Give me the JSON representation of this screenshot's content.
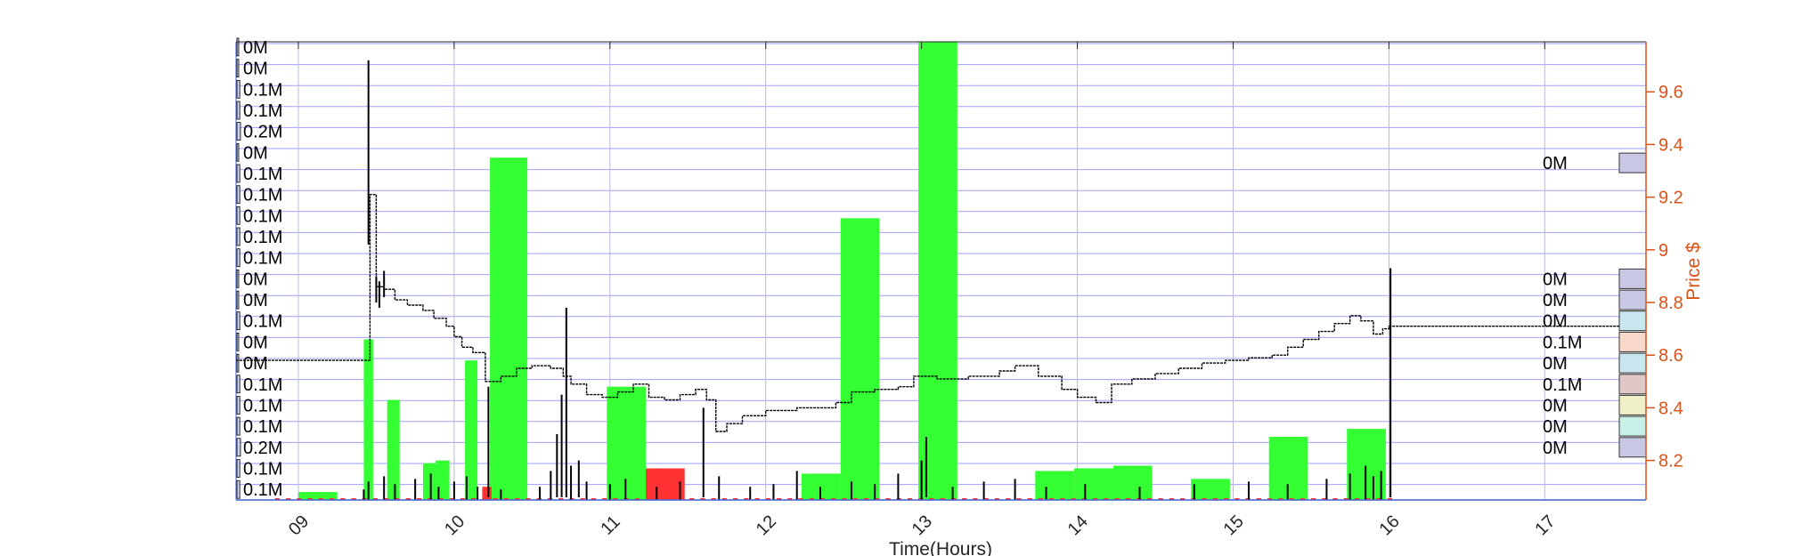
{
  "chart_data": {
    "type": "bar",
    "xlabel": "Time(Hours)",
    "ylabel_right": "Price $",
    "x_ticks": [
      "09",
      "10",
      "11",
      "12",
      "13",
      "14",
      "15",
      "16",
      "17"
    ],
    "xlim_hours": [
      8.6,
      17.65
    ],
    "price_ylim": [
      8.05,
      9.79
    ],
    "price_ticks": [
      8.2,
      8.4,
      8.6,
      8.8,
      9,
      9.2,
      9.4,
      9.6
    ],
    "price_tick_labels": [
      "8.2",
      "8.4",
      "8.6",
      "8.8",
      "9",
      "9.2",
      "9.4",
      "9.6"
    ],
    "grid": true,
    "colors": {
      "buy_volume": "#33ff33",
      "sell_volume": "#ff3333",
      "price_axis": "#d95319",
      "grid": "#8080ff",
      "price_line": "#000000",
      "trade_bars": "#000000",
      "profile_box_lavender": "#c8c8e6",
      "profile_box_lightblue": "#c8e6f0",
      "profile_box_peach": "#f8d8c8",
      "profile_box_rose": "#e0c8c8",
      "profile_box_lightyellow": "#f0f0c8",
      "profile_box_mint": "#c8f0e6"
    },
    "volume_profile_left": [
      "0M",
      "0M",
      "0.1M",
      "0.1M",
      "0.2M",
      "0M",
      "0.1M",
      "0.1M",
      "0.1M",
      "0.1M",
      "0.1M",
      "0M",
      "0M",
      "0.1M",
      "0M",
      "0M",
      "0.1M",
      "0.1M",
      "0.1M",
      "0.2M",
      "0.1M",
      "0.1M"
    ],
    "volume_profile_right": [
      {
        "price": 9.33,
        "label": "0M",
        "color": "lavender"
      },
      {
        "price": 8.89,
        "label": "0M",
        "color": "lavender"
      },
      {
        "price": 8.81,
        "label": "0M",
        "color": "lavender"
      },
      {
        "price": 8.73,
        "label": "0M",
        "color": "lightblue"
      },
      {
        "price": 8.65,
        "label": "0.1M",
        "color": "peach"
      },
      {
        "price": 8.57,
        "label": "0M",
        "color": "lightblue"
      },
      {
        "price": 8.49,
        "label": "0.1M",
        "color": "rose"
      },
      {
        "price": 8.41,
        "label": "0M",
        "color": "lightyellow"
      },
      {
        "price": 8.33,
        "label": "0M",
        "color": "mint"
      },
      {
        "price": 8.25,
        "label": "0M",
        "color": "lavender"
      }
    ],
    "buy_volume_bars": [
      {
        "x0": 9.0,
        "x1": 9.25,
        "top_price": 8.08
      },
      {
        "x0": 9.42,
        "x1": 9.48,
        "top_price": 8.66
      },
      {
        "x0": 9.57,
        "x1": 9.65,
        "top_price": 8.43
      },
      {
        "x0": 9.8,
        "x1": 9.9,
        "top_price": 8.19
      },
      {
        "x0": 9.88,
        "x1": 9.97,
        "top_price": 8.2
      },
      {
        "x0": 10.07,
        "x1": 10.15,
        "top_price": 8.58
      },
      {
        "x0": 10.23,
        "x1": 10.47,
        "top_price": 9.35
      },
      {
        "x0": 10.98,
        "x1": 11.23,
        "top_price": 8.48
      },
      {
        "x0": 12.23,
        "x1": 12.48,
        "top_price": 8.15
      },
      {
        "x0": 12.48,
        "x1": 12.73,
        "top_price": 9.12
      },
      {
        "x0": 12.98,
        "x1": 13.23,
        "top_price": 9.79
      },
      {
        "x0": 13.73,
        "x1": 13.98,
        "top_price": 8.16
      },
      {
        "x0": 13.98,
        "x1": 14.23,
        "top_price": 8.17
      },
      {
        "x0": 14.23,
        "x1": 14.48,
        "top_price": 8.18
      },
      {
        "x0": 14.73,
        "x1": 14.98,
        "top_price": 8.13
      },
      {
        "x0": 15.23,
        "x1": 15.48,
        "top_price": 8.29
      },
      {
        "x0": 15.73,
        "x1": 15.98,
        "top_price": 8.32
      }
    ],
    "sell_volume_bars": [
      {
        "x0": 10.18,
        "x1": 10.24,
        "top_price": 8.1
      },
      {
        "x0": 11.23,
        "x1": 11.48,
        "top_price": 8.17
      }
    ],
    "price_series": [
      {
        "t": 8.6,
        "p": 8.58
      },
      {
        "t": 9.45,
        "p": 8.58
      },
      {
        "t": 9.46,
        "p": 9.21
      },
      {
        "t": 9.5,
        "p": 8.86
      },
      {
        "t": 9.55,
        "p": 8.85
      },
      {
        "t": 9.62,
        "p": 8.81
      },
      {
        "t": 9.7,
        "p": 8.79
      },
      {
        "t": 9.8,
        "p": 8.77
      },
      {
        "t": 9.87,
        "p": 8.74
      },
      {
        "t": 9.95,
        "p": 8.71
      },
      {
        "t": 10.0,
        "p": 8.67
      },
      {
        "t": 10.05,
        "p": 8.63
      },
      {
        "t": 10.12,
        "p": 8.61
      },
      {
        "t": 10.2,
        "p": 8.5
      },
      {
        "t": 10.3,
        "p": 8.52
      },
      {
        "t": 10.4,
        "p": 8.55
      },
      {
        "t": 10.5,
        "p": 8.56
      },
      {
        "t": 10.62,
        "p": 8.55
      },
      {
        "t": 10.7,
        "p": 8.52
      },
      {
        "t": 10.75,
        "p": 8.49
      },
      {
        "t": 10.85,
        "p": 8.45
      },
      {
        "t": 10.95,
        "p": 8.44
      },
      {
        "t": 11.05,
        "p": 8.46
      },
      {
        "t": 11.15,
        "p": 8.49
      },
      {
        "t": 11.25,
        "p": 8.44
      },
      {
        "t": 11.35,
        "p": 8.43
      },
      {
        "t": 11.45,
        "p": 8.45
      },
      {
        "t": 11.55,
        "p": 8.47
      },
      {
        "t": 11.62,
        "p": 8.43
      },
      {
        "t": 11.68,
        "p": 8.31
      },
      {
        "t": 11.75,
        "p": 8.34
      },
      {
        "t": 11.85,
        "p": 8.37
      },
      {
        "t": 12.0,
        "p": 8.39
      },
      {
        "t": 12.2,
        "p": 8.4
      },
      {
        "t": 12.45,
        "p": 8.42
      },
      {
        "t": 12.55,
        "p": 8.46
      },
      {
        "t": 12.7,
        "p": 8.47
      },
      {
        "t": 12.85,
        "p": 8.48
      },
      {
        "t": 12.95,
        "p": 8.52
      },
      {
        "t": 13.1,
        "p": 8.51
      },
      {
        "t": 13.3,
        "p": 8.52
      },
      {
        "t": 13.5,
        "p": 8.54
      },
      {
        "t": 13.6,
        "p": 8.56
      },
      {
        "t": 13.75,
        "p": 8.52
      },
      {
        "t": 13.9,
        "p": 8.47
      },
      {
        "t": 14.0,
        "p": 8.44
      },
      {
        "t": 14.12,
        "p": 8.42
      },
      {
        "t": 14.22,
        "p": 8.49
      },
      {
        "t": 14.35,
        "p": 8.51
      },
      {
        "t": 14.5,
        "p": 8.53
      },
      {
        "t": 14.65,
        "p": 8.55
      },
      {
        "t": 14.8,
        "p": 8.57
      },
      {
        "t": 14.95,
        "p": 8.58
      },
      {
        "t": 15.1,
        "p": 8.59
      },
      {
        "t": 15.25,
        "p": 8.6
      },
      {
        "t": 15.35,
        "p": 8.63
      },
      {
        "t": 15.45,
        "p": 8.66
      },
      {
        "t": 15.55,
        "p": 8.69
      },
      {
        "t": 15.65,
        "p": 8.72
      },
      {
        "t": 15.75,
        "p": 8.75
      },
      {
        "t": 15.82,
        "p": 8.73
      },
      {
        "t": 15.9,
        "p": 8.68
      },
      {
        "t": 15.96,
        "p": 8.7
      },
      {
        "t": 16.0,
        "p": 8.71
      },
      {
        "t": 17.65,
        "p": 8.71
      }
    ],
    "trade_spikes": [
      {
        "t": 9.45,
        "low": 9.02,
        "high": 9.72
      },
      {
        "t": 9.5,
        "low": 8.8,
        "high": 8.9
      },
      {
        "t": 9.52,
        "low": 8.78,
        "high": 8.88
      },
      {
        "t": 9.55,
        "low": 8.82,
        "high": 8.92
      },
      {
        "t": 10.22,
        "low": 8.06,
        "high": 8.48
      },
      {
        "t": 10.66,
        "low": 8.06,
        "high": 8.3
      },
      {
        "t": 10.69,
        "low": 8.06,
        "high": 8.45
      },
      {
        "t": 10.72,
        "low": 8.06,
        "high": 8.78
      },
      {
        "t": 10.8,
        "low": 8.06,
        "high": 8.2
      },
      {
        "t": 11.6,
        "low": 8.06,
        "high": 8.4
      },
      {
        "t": 13.03,
        "low": 8.06,
        "high": 8.29
      },
      {
        "t": 16.01,
        "low": 8.06,
        "high": 8.93
      }
    ],
    "small_trade_bars": [
      {
        "t": 9.42,
        "v": 8.09
      },
      {
        "t": 9.45,
        "v": 8.12
      },
      {
        "t": 9.55,
        "v": 8.14
      },
      {
        "t": 9.62,
        "v": 8.11
      },
      {
        "t": 9.75,
        "v": 8.13
      },
      {
        "t": 9.85,
        "v": 8.15
      },
      {
        "t": 9.9,
        "v": 8.1
      },
      {
        "t": 10.0,
        "v": 8.12
      },
      {
        "t": 10.08,
        "v": 8.14
      },
      {
        "t": 10.15,
        "v": 8.1
      },
      {
        "t": 10.3,
        "v": 8.09
      },
      {
        "t": 10.55,
        "v": 8.1
      },
      {
        "t": 10.62,
        "v": 8.16
      },
      {
        "t": 10.75,
        "v": 8.18
      },
      {
        "t": 10.85,
        "v": 8.12
      },
      {
        "t": 11.0,
        "v": 8.11
      },
      {
        "t": 11.1,
        "v": 8.13
      },
      {
        "t": 11.3,
        "v": 8.1
      },
      {
        "t": 11.45,
        "v": 8.12
      },
      {
        "t": 11.7,
        "v": 8.14
      },
      {
        "t": 11.9,
        "v": 8.1
      },
      {
        "t": 12.05,
        "v": 8.11
      },
      {
        "t": 12.2,
        "v": 8.16
      },
      {
        "t": 12.35,
        "v": 8.1
      },
      {
        "t": 12.55,
        "v": 8.12
      },
      {
        "t": 12.7,
        "v": 8.11
      },
      {
        "t": 12.85,
        "v": 8.15
      },
      {
        "t": 13.0,
        "v": 8.2
      },
      {
        "t": 13.2,
        "v": 8.1
      },
      {
        "t": 13.4,
        "v": 8.12
      },
      {
        "t": 13.6,
        "v": 8.13
      },
      {
        "t": 13.8,
        "v": 8.1
      },
      {
        "t": 14.05,
        "v": 8.11
      },
      {
        "t": 14.4,
        "v": 8.1
      },
      {
        "t": 14.75,
        "v": 8.11
      },
      {
        "t": 15.1,
        "v": 8.12
      },
      {
        "t": 15.35,
        "v": 8.11
      },
      {
        "t": 15.6,
        "v": 8.13
      },
      {
        "t": 15.75,
        "v": 8.15
      },
      {
        "t": 15.85,
        "v": 8.18
      },
      {
        "t": 15.9,
        "v": 8.14
      },
      {
        "t": 15.95,
        "v": 8.16
      }
    ],
    "left_profile_bars": [
      {
        "price": 9.77,
        "fraction": 0.0
      },
      {
        "price": 9.69,
        "fraction": 0.0
      },
      {
        "price": 9.61,
        "fraction": 0.3
      },
      {
        "price": 9.53,
        "fraction": 0.3
      },
      {
        "price": 9.45,
        "fraction": 0.5
      },
      {
        "price": 9.37,
        "fraction": 0.0
      },
      {
        "price": 9.29,
        "fraction": 0.3
      },
      {
        "price": 9.21,
        "fraction": 0.3
      },
      {
        "price": 9.13,
        "fraction": 0.3
      },
      {
        "price": 9.05,
        "fraction": 0.3
      },
      {
        "price": 8.97,
        "fraction": 0.3
      },
      {
        "price": 8.89,
        "fraction": 0.0
      },
      {
        "price": 8.81,
        "fraction": 0.0
      },
      {
        "price": 8.73,
        "fraction": 0.3
      },
      {
        "price": 8.65,
        "fraction": 0.0
      },
      {
        "price": 8.57,
        "fraction": 0.0
      },
      {
        "price": 8.49,
        "fraction": 0.3
      },
      {
        "price": 8.41,
        "fraction": 0.3
      },
      {
        "price": 8.33,
        "fraction": 0.3
      },
      {
        "price": 8.25,
        "fraction": 0.5
      },
      {
        "price": 8.17,
        "fraction": 0.3
      },
      {
        "price": 8.09,
        "fraction": 0.3
      }
    ]
  }
}
